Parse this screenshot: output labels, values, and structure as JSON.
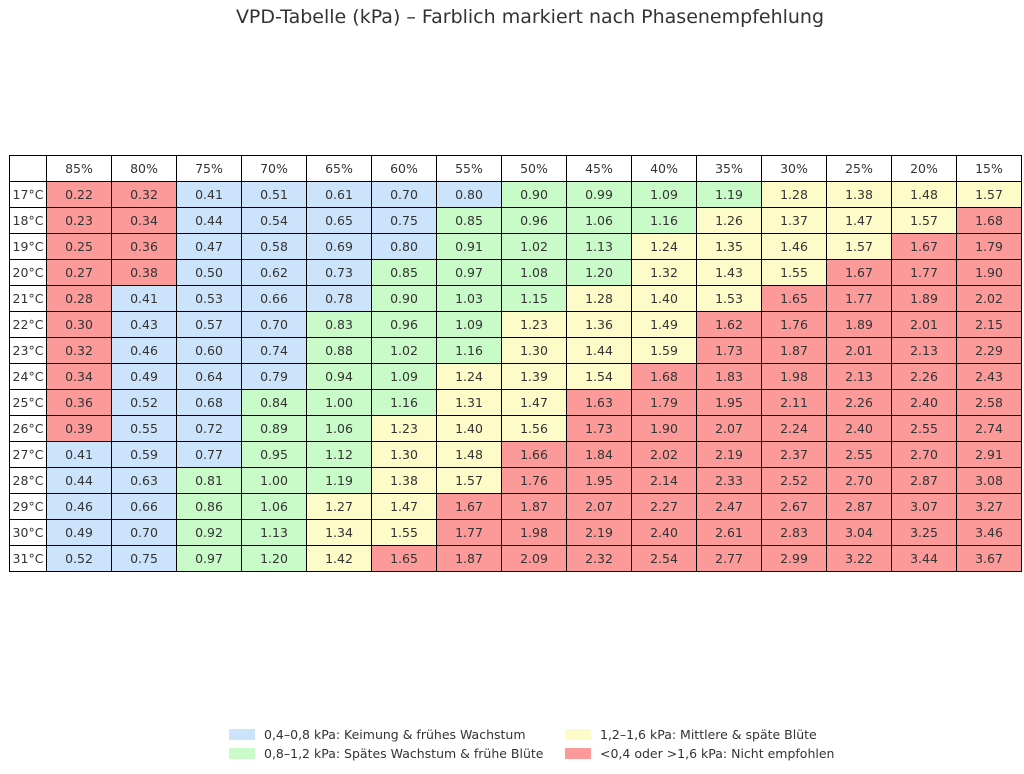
{
  "chart_data": {
    "type": "table",
    "title": "VPD-Tabelle (kPa) – Farblich markiert nach Phasenempfehlung",
    "columns": [
      "85%",
      "80%",
      "75%",
      "70%",
      "65%",
      "60%",
      "55%",
      "50%",
      "45%",
      "40%",
      "35%",
      "30%",
      "25%",
      "20%",
      "15%"
    ],
    "rows": [
      "17°C",
      "18°C",
      "19°C",
      "20°C",
      "21°C",
      "22°C",
      "23°C",
      "24°C",
      "25°C",
      "26°C",
      "27°C",
      "28°C",
      "29°C",
      "30°C",
      "31°C"
    ],
    "values": [
      [
        "0.22",
        "0.32",
        "0.41",
        "0.51",
        "0.61",
        "0.70",
        "0.80",
        "0.90",
        "0.99",
        "1.09",
        "1.19",
        "1.28",
        "1.38",
        "1.48",
        "1.57"
      ],
      [
        "0.23",
        "0.34",
        "0.44",
        "0.54",
        "0.65",
        "0.75",
        "0.85",
        "0.96",
        "1.06",
        "1.16",
        "1.26",
        "1.37",
        "1.47",
        "1.57",
        "1.68"
      ],
      [
        "0.25",
        "0.36",
        "0.47",
        "0.58",
        "0.69",
        "0.80",
        "0.91",
        "1.02",
        "1.13",
        "1.24",
        "1.35",
        "1.46",
        "1.57",
        "1.67",
        "1.79"
      ],
      [
        "0.27",
        "0.38",
        "0.50",
        "0.62",
        "0.73",
        "0.85",
        "0.97",
        "1.08",
        "1.20",
        "1.32",
        "1.43",
        "1.55",
        "1.67",
        "1.77",
        "1.90"
      ],
      [
        "0.28",
        "0.41",
        "0.53",
        "0.66",
        "0.78",
        "0.90",
        "1.03",
        "1.15",
        "1.28",
        "1.40",
        "1.53",
        "1.65",
        "1.77",
        "1.89",
        "2.02"
      ],
      [
        "0.30",
        "0.43",
        "0.57",
        "0.70",
        "0.83",
        "0.96",
        "1.09",
        "1.23",
        "1.36",
        "1.49",
        "1.62",
        "1.76",
        "1.89",
        "2.01",
        "2.15"
      ],
      [
        "0.32",
        "0.46",
        "0.60",
        "0.74",
        "0.88",
        "1.02",
        "1.16",
        "1.30",
        "1.44",
        "1.59",
        "1.73",
        "1.87",
        "2.01",
        "2.13",
        "2.29"
      ],
      [
        "0.34",
        "0.49",
        "0.64",
        "0.79",
        "0.94",
        "1.09",
        "1.24",
        "1.39",
        "1.54",
        "1.68",
        "1.83",
        "1.98",
        "2.13",
        "2.26",
        "2.43"
      ],
      [
        "0.36",
        "0.52",
        "0.68",
        "0.84",
        "1.00",
        "1.16",
        "1.31",
        "1.47",
        "1.63",
        "1.79",
        "1.95",
        "2.11",
        "2.26",
        "2.40",
        "2.58"
      ],
      [
        "0.39",
        "0.55",
        "0.72",
        "0.89",
        "1.06",
        "1.23",
        "1.40",
        "1.56",
        "1.73",
        "1.90",
        "2.07",
        "2.24",
        "2.40",
        "2.55",
        "2.74"
      ],
      [
        "0.41",
        "0.59",
        "0.77",
        "0.95",
        "1.12",
        "1.30",
        "1.48",
        "1.66",
        "1.84",
        "2.02",
        "2.19",
        "2.37",
        "2.55",
        "2.70",
        "2.91"
      ],
      [
        "0.44",
        "0.63",
        "0.81",
        "1.00",
        "1.19",
        "1.38",
        "1.57",
        "1.76",
        "1.95",
        "2.14",
        "2.33",
        "2.52",
        "2.70",
        "2.87",
        "3.08"
      ],
      [
        "0.46",
        "0.66",
        "0.86",
        "1.06",
        "1.27",
        "1.47",
        "1.67",
        "1.87",
        "2.07",
        "2.27",
        "2.47",
        "2.67",
        "2.87",
        "3.07",
        "3.27"
      ],
      [
        "0.49",
        "0.70",
        "0.92",
        "1.13",
        "1.34",
        "1.55",
        "1.77",
        "1.98",
        "2.19",
        "2.40",
        "2.61",
        "2.83",
        "3.04",
        "3.25",
        "3.46"
      ],
      [
        "0.52",
        "0.75",
        "0.97",
        "1.20",
        "1.42",
        "1.65",
        "1.87",
        "2.09",
        "2.32",
        "2.54",
        "2.77",
        "2.99",
        "3.22",
        "3.44",
        "3.67"
      ]
    ],
    "categories": [
      {
        "key": "blue",
        "color": "#cce4fb",
        "label": "0,4–0,8 kPa: Keimung & frühes Wachstum"
      },
      {
        "key": "green",
        "color": "#c8fbc8",
        "label": "0,8–1,2 kPa: Spätes Wachstum & frühe Blüte"
      },
      {
        "key": "yellow",
        "color": "#fdfcc8",
        "label": "1,2–1,6 kPa: Mittlere & späte Blüte"
      },
      {
        "key": "red",
        "color": "#fc9a9a",
        "label": "<0,4 oder >1,6 kPa: Nicht empfohlen"
      }
    ],
    "cell_categories": [
      [
        "red",
        "red",
        "blue",
        "blue",
        "blue",
        "blue",
        "blue",
        "green",
        "green",
        "green",
        "green",
        "yellow",
        "yellow",
        "yellow",
        "yellow"
      ],
      [
        "red",
        "red",
        "blue",
        "blue",
        "blue",
        "blue",
        "green",
        "green",
        "green",
        "green",
        "yellow",
        "yellow",
        "yellow",
        "yellow",
        "red"
      ],
      [
        "red",
        "red",
        "blue",
        "blue",
        "blue",
        "blue",
        "green",
        "green",
        "green",
        "yellow",
        "yellow",
        "yellow",
        "yellow",
        "red",
        "red"
      ],
      [
        "red",
        "red",
        "blue",
        "blue",
        "blue",
        "green",
        "green",
        "green",
        "green",
        "yellow",
        "yellow",
        "yellow",
        "red",
        "red",
        "red"
      ],
      [
        "red",
        "blue",
        "blue",
        "blue",
        "blue",
        "green",
        "green",
        "green",
        "yellow",
        "yellow",
        "yellow",
        "red",
        "red",
        "red",
        "red"
      ],
      [
        "red",
        "blue",
        "blue",
        "blue",
        "green",
        "green",
        "green",
        "yellow",
        "yellow",
        "yellow",
        "red",
        "red",
        "red",
        "red",
        "red"
      ],
      [
        "red",
        "blue",
        "blue",
        "blue",
        "green",
        "green",
        "green",
        "yellow",
        "yellow",
        "yellow",
        "red",
        "red",
        "red",
        "red",
        "red"
      ],
      [
        "red",
        "blue",
        "blue",
        "blue",
        "green",
        "green",
        "yellow",
        "yellow",
        "yellow",
        "red",
        "red",
        "red",
        "red",
        "red",
        "red"
      ],
      [
        "red",
        "blue",
        "blue",
        "green",
        "green",
        "green",
        "yellow",
        "yellow",
        "red",
        "red",
        "red",
        "red",
        "red",
        "red",
        "red"
      ],
      [
        "red",
        "blue",
        "blue",
        "green",
        "green",
        "yellow",
        "yellow",
        "yellow",
        "red",
        "red",
        "red",
        "red",
        "red",
        "red",
        "red"
      ],
      [
        "blue",
        "blue",
        "blue",
        "green",
        "green",
        "yellow",
        "yellow",
        "red",
        "red",
        "red",
        "red",
        "red",
        "red",
        "red",
        "red"
      ],
      [
        "blue",
        "blue",
        "green",
        "green",
        "green",
        "yellow",
        "yellow",
        "red",
        "red",
        "red",
        "red",
        "red",
        "red",
        "red",
        "red"
      ],
      [
        "blue",
        "blue",
        "green",
        "green",
        "yellow",
        "yellow",
        "red",
        "red",
        "red",
        "red",
        "red",
        "red",
        "red",
        "red",
        "red"
      ],
      [
        "blue",
        "blue",
        "green",
        "green",
        "yellow",
        "yellow",
        "red",
        "red",
        "red",
        "red",
        "red",
        "red",
        "red",
        "red",
        "red"
      ],
      [
        "blue",
        "blue",
        "green",
        "green",
        "yellow",
        "red",
        "red",
        "red",
        "red",
        "red",
        "red",
        "red",
        "red",
        "red",
        "red"
      ]
    ],
    "legend_position": "bottom"
  }
}
